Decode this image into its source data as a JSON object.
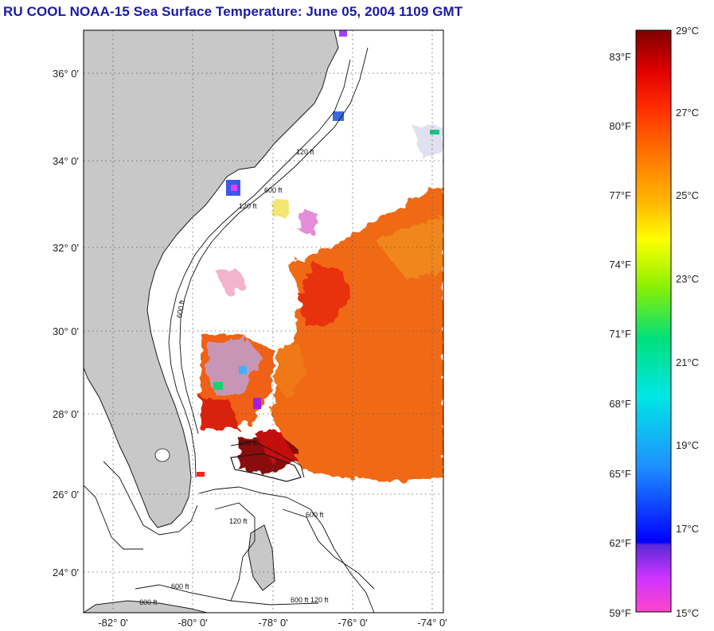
{
  "title": "RU COOL  NOAA-15  Sea Surface Temperature:  June 05, 2004 1109 GMT",
  "map": {
    "lat_labels": [
      "36° 0'",
      "34° 0'",
      "32° 0'",
      "30° 0'",
      "28° 0'",
      "26° 0'",
      "24° 0'"
    ],
    "lon_labels": [
      "-82° 0'",
      "-80° 0'",
      "-78° 0'",
      "-76° 0'",
      "-74° 0'"
    ],
    "isobath_labels": [
      "120 ft",
      "600 ft",
      "120 ft",
      "600 ft",
      "600 ft",
      "120 ft",
      "600 ft",
      "600 ft",
      "600 ft",
      "120 ft",
      "600 ft"
    ],
    "colors": {
      "land": "#c8c8c8",
      "water_nodata": "#ffffff",
      "warm": "#f06010"
    }
  },
  "colorbar": {
    "fahrenheit_labels": [
      "83°F",
      "80°F",
      "77°F",
      "74°F",
      "71°F",
      "68°F",
      "65°F",
      "62°F",
      "59°F"
    ],
    "celsius_labels": [
      "29°C",
      "27°C",
      "25°C",
      "23°C",
      "21°C",
      "19°C",
      "17°C",
      "15°C"
    ],
    "range_celsius": [
      15,
      29
    ],
    "range_fahrenheit": [
      59,
      84.2
    ]
  }
}
